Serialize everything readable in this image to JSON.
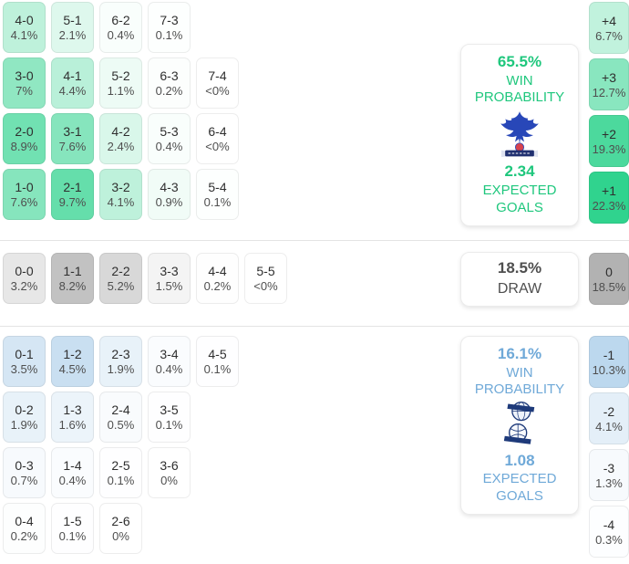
{
  "chart_data": {
    "type": "heatmap",
    "description": "Correct score probability matrix with win/draw/loss probabilities, expected goals and goal-margin probabilities",
    "home": {
      "win_probability": "65.5%",
      "win_probability_label": "WIN PROBABILITY",
      "expected_goals": "2.34",
      "expected_goals_label": "EXPECTED GOALS",
      "crest": "crystal-palace-crest",
      "accent": "#1fc77d"
    },
    "draw": {
      "probability": "18.5%",
      "label": "DRAW",
      "accent": "#4f4f4f"
    },
    "away": {
      "win_probability": "16.1%",
      "win_probability_label": "WIN PROBABILITY",
      "expected_goals": "1.08",
      "expected_goals_label": "EXPECTED GOALS",
      "crest": "birmingham-city-crest",
      "accent": "#6fa9d8"
    },
    "home_score_rows": [
      [
        {
          "score": "4-0",
          "pct": "4.1%",
          "value": 4.1
        },
        {
          "score": "5-1",
          "pct": "2.1%",
          "value": 2.1
        },
        {
          "score": "6-2",
          "pct": "0.4%",
          "value": 0.4
        },
        {
          "score": "7-3",
          "pct": "0.1%",
          "value": 0.1
        }
      ],
      [
        {
          "score": "3-0",
          "pct": "7%",
          "value": 7
        },
        {
          "score": "4-1",
          "pct": "4.4%",
          "value": 4.4
        },
        {
          "score": "5-2",
          "pct": "1.1%",
          "value": 1.1
        },
        {
          "score": "6-3",
          "pct": "0.2%",
          "value": 0.2
        },
        {
          "score": "7-4",
          "pct": "<0%",
          "value": 0
        }
      ],
      [
        {
          "score": "2-0",
          "pct": "8.9%",
          "value": 8.9
        },
        {
          "score": "3-1",
          "pct": "7.6%",
          "value": 7.6
        },
        {
          "score": "4-2",
          "pct": "2.4%",
          "value": 2.4
        },
        {
          "score": "5-3",
          "pct": "0.4%",
          "value": 0.4
        },
        {
          "score": "6-4",
          "pct": "<0%",
          "value": 0
        }
      ],
      [
        {
          "score": "1-0",
          "pct": "7.6%",
          "value": 7.6
        },
        {
          "score": "2-1",
          "pct": "9.7%",
          "value": 9.7
        },
        {
          "score": "3-2",
          "pct": "4.1%",
          "value": 4.1
        },
        {
          "score": "4-3",
          "pct": "0.9%",
          "value": 0.9
        },
        {
          "score": "5-4",
          "pct": "0.1%",
          "value": 0.1
        }
      ]
    ],
    "draw_score_rows": [
      [
        {
          "score": "0-0",
          "pct": "3.2%",
          "value": 3.2
        },
        {
          "score": "1-1",
          "pct": "8.2%",
          "value": 8.2
        },
        {
          "score": "2-2",
          "pct": "5.2%",
          "value": 5.2
        },
        {
          "score": "3-3",
          "pct": "1.5%",
          "value": 1.5
        },
        {
          "score": "4-4",
          "pct": "0.2%",
          "value": 0.2
        },
        {
          "score": "5-5",
          "pct": "<0%",
          "value": 0
        }
      ]
    ],
    "away_score_rows": [
      [
        {
          "score": "0-1",
          "pct": "3.5%",
          "value": 3.5
        },
        {
          "score": "1-2",
          "pct": "4.5%",
          "value": 4.5
        },
        {
          "score": "2-3",
          "pct": "1.9%",
          "value": 1.9
        },
        {
          "score": "3-4",
          "pct": "0.4%",
          "value": 0.4
        },
        {
          "score": "4-5",
          "pct": "0.1%",
          "value": 0.1
        }
      ],
      [
        {
          "score": "0-2",
          "pct": "1.9%",
          "value": 1.9
        },
        {
          "score": "1-3",
          "pct": "1.6%",
          "value": 1.6
        },
        {
          "score": "2-4",
          "pct": "0.5%",
          "value": 0.5
        },
        {
          "score": "3-5",
          "pct": "0.1%",
          "value": 0.1
        }
      ],
      [
        {
          "score": "0-3",
          "pct": "0.7%",
          "value": 0.7
        },
        {
          "score": "1-4",
          "pct": "0.4%",
          "value": 0.4
        },
        {
          "score": "2-5",
          "pct": "0.1%",
          "value": 0.1
        },
        {
          "score": "3-6",
          "pct": "0%",
          "value": 0
        }
      ],
      [
        {
          "score": "0-4",
          "pct": "0.2%",
          "value": 0.2
        },
        {
          "score": "1-5",
          "pct": "0.1%",
          "value": 0.1
        },
        {
          "score": "2-6",
          "pct": "0%",
          "value": 0
        }
      ]
    ],
    "home_margins": [
      {
        "diff": "+4",
        "pct": "6.7%",
        "value": 6.7
      },
      {
        "diff": "+3",
        "pct": "12.7%",
        "value": 12.7
      },
      {
        "diff": "+2",
        "pct": "19.3%",
        "value": 19.3
      },
      {
        "diff": "+1",
        "pct": "22.3%",
        "value": 22.3
      }
    ],
    "draw_margins": [
      {
        "diff": "0",
        "pct": "18.5%",
        "value": 18.5
      }
    ],
    "away_margins": [
      {
        "diff": "-1",
        "pct": "10.3%",
        "value": 10.3
      },
      {
        "diff": "-2",
        "pct": "4.1%",
        "value": 4.1
      },
      {
        "diff": "-3",
        "pct": "1.3%",
        "value": 1.3
      },
      {
        "diff": "-4",
        "pct": "0.3%",
        "value": 0.3
      }
    ],
    "tint": {
      "home_grid": {
        "base": [
          48,
          211,
          142
        ],
        "div": 13
      },
      "home_margin": {
        "base": [
          48,
          211,
          142
        ],
        "div": 22.3
      },
      "draw_grid": {
        "base": [
          118,
          118,
          118
        ],
        "div": 18.5
      },
      "draw_margin": {
        "base": [
          118,
          118,
          118
        ],
        "div": 33
      },
      "away_grid": {
        "base": [
          92,
          160,
          214
        ],
        "div": 13.5
      },
      "away_margin": {
        "base": [
          92,
          160,
          214
        ],
        "div": 25
      }
    }
  }
}
